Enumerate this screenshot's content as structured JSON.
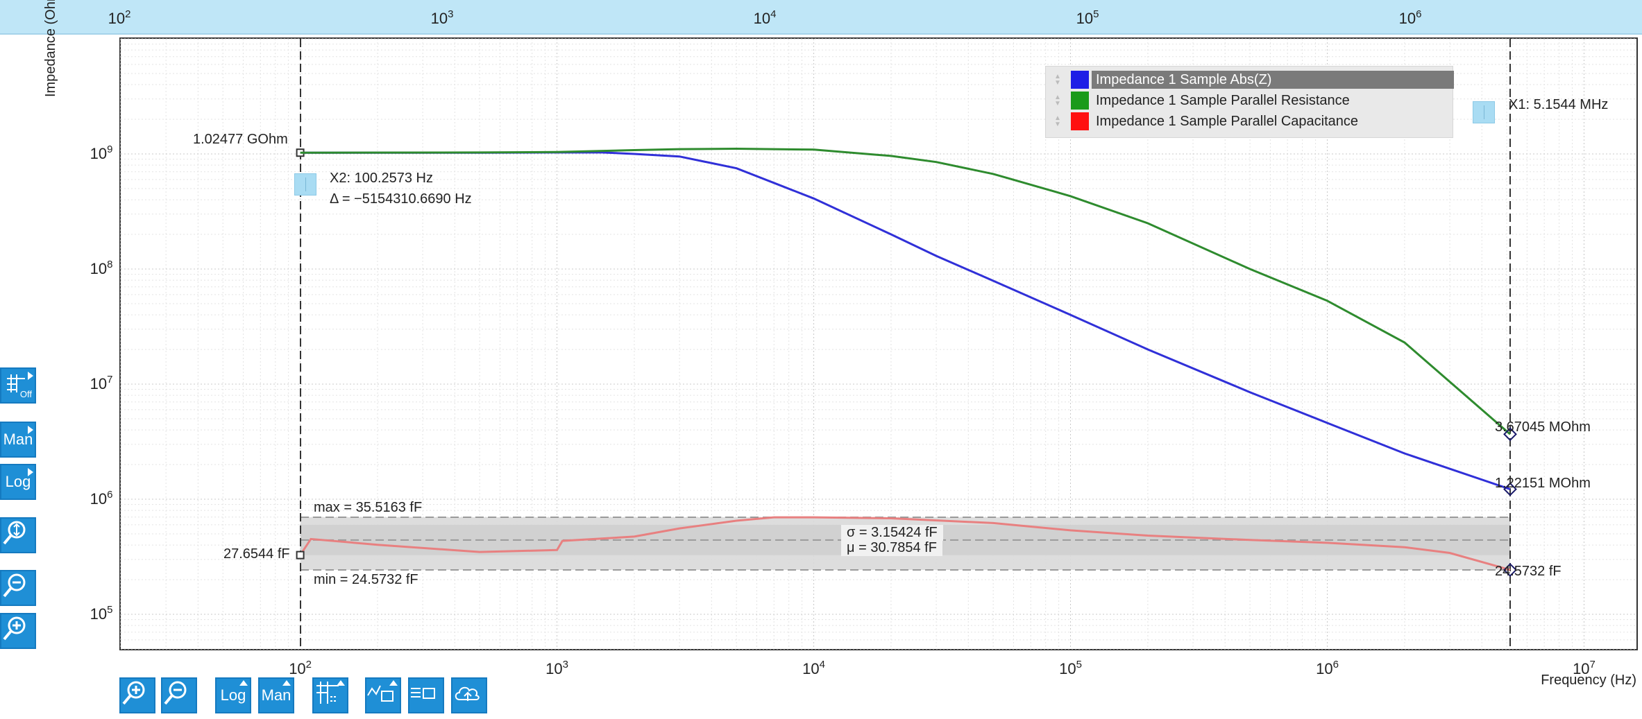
{
  "plot": {
    "yaxis_title": "Impedance (Ohm)",
    "xaxis_title": "Frequency (Hz)",
    "top_axis_exponents": [
      "2",
      "3",
      "4",
      "5",
      "6"
    ],
    "bottom_axis_exponents": [
      "2",
      "3",
      "4",
      "5",
      "6",
      "7"
    ],
    "y_axis_exponents": [
      "5",
      "6",
      "7",
      "8",
      "9"
    ],
    "tick_base": "10"
  },
  "legend": {
    "items": [
      {
        "label": "Impedance 1 Sample Abs(Z)",
        "color": "#1e1ee6",
        "selected": true
      },
      {
        "label": "Impedance 1 Sample Parallel Resistance",
        "color": "#1a9a1a",
        "selected": false
      },
      {
        "label": "Impedance 1 Sample Parallel Capacitance",
        "color": "#ff1010",
        "selected": false
      }
    ]
  },
  "cursors": {
    "x1_label": "X1: 5.1544 MHz",
    "x2_label": "X2: 100.2573 Hz",
    "delta_label": "Δ = −5154310.6690 Hz"
  },
  "markers": {
    "left_abs": "1.02477 GOhm",
    "left_cap": "27.6544 fF",
    "right_res": "3.67045 MOhm",
    "right_abs": "1.22151 MOhm",
    "right_cap": "24.5732 fF"
  },
  "stats": {
    "max": "max = 35.5163 fF",
    "min": "min = 24.5732 fF",
    "sigma": "σ = 3.15424 fF",
    "mu": "μ = 30.7854 fF"
  },
  "toolbar_left": [
    {
      "name": "grid-off-button",
      "label": "Off"
    },
    {
      "name": "y-range-manual-button",
      "label": "Man"
    },
    {
      "name": "y-scale-log-button",
      "label": "Log"
    },
    {
      "name": "zoom-fit-y-button",
      "label": ""
    },
    {
      "name": "zoom-out-y-button",
      "label": ""
    },
    {
      "name": "zoom-in-y-button",
      "label": ""
    }
  ],
  "toolbar_bottom": [
    {
      "name": "zoom-in-x-button",
      "label": ""
    },
    {
      "name": "zoom-out-x-button",
      "label": ""
    },
    {
      "name": "x-scale-log-button",
      "label": "Log"
    },
    {
      "name": "x-range-manual-button",
      "label": "Man"
    },
    {
      "name": "cursor-tool-button",
      "label": ""
    },
    {
      "name": "math-tool-button",
      "label": ""
    },
    {
      "name": "save-data-button",
      "label": ""
    },
    {
      "name": "cloud-upload-button",
      "label": ""
    }
  ],
  "chart_data": {
    "type": "line",
    "x_scale": "log",
    "y_scale": "log",
    "xlim": [
      20,
      16000000
    ],
    "ylim": [
      50000,
      10000000000
    ],
    "xlabel": "Frequency (Hz)",
    "ylabel": "Impedance (Ohm)",
    "grid": true,
    "legend_position": "top-right",
    "series": [
      {
        "name": "Impedance 1 Sample Abs(Z)",
        "color": "#3030d8",
        "x": [
          100,
          200,
          500,
          1000,
          1500,
          2000,
          3000,
          5000,
          7000,
          10000,
          20000,
          30000,
          50000,
          100000,
          200000,
          500000,
          1000000,
          2000000,
          5154400
        ],
        "y": [
          1024770000,
          1024000000,
          1024000000,
          1030000000,
          1030000000,
          1000000000,
          950000000,
          750000000,
          560000000,
          410000000,
          200000000,
          130000000,
          79000000,
          40000000,
          20000000,
          8500000,
          4600000,
          2500000,
          1221510
        ]
      },
      {
        "name": "Impedance 1 Sample Parallel Resistance",
        "color": "#2e8b2e",
        "x": [
          100,
          500,
          1000,
          2000,
          3000,
          5000,
          10000,
          20000,
          30000,
          50000,
          100000,
          200000,
          500000,
          1000000,
          2000000,
          5154400
        ],
        "y": [
          1024770000,
          1030000000,
          1040000000,
          1080000000,
          1100000000,
          1110000000,
          1090000000,
          960000000,
          850000000,
          670000000,
          430000000,
          250000000,
          100000000,
          53000000,
          23000000,
          3670450
        ]
      },
      {
        "name": "Impedance 1 Sample Parallel Capacitance",
        "color": "#e88080",
        "x": [
          100,
          110,
          200,
          500,
          1000,
          1050,
          2000,
          3000,
          5000,
          7000,
          10000,
          20000,
          50000,
          100000,
          200000,
          500000,
          1000000,
          2000000,
          3000000,
          5154400
        ],
        "y": [
          27.6544,
          31.0,
          29.8,
          28.3,
          28.7,
          30.6,
          31.5,
          33.2,
          34.8,
          35.5,
          35.5,
          35.3,
          34.3,
          32.8,
          31.7,
          30.8,
          30.2,
          29.3,
          28.1,
          24.5732
        ]
      }
    ],
    "capacitance_unit": "fF",
    "capacitance_stats": {
      "max": 35.5163,
      "min": 24.5732,
      "sigma": 3.15424,
      "mu": 30.7854
    },
    "cursors": {
      "x1": 5154400,
      "x2": 100.2573
    }
  }
}
